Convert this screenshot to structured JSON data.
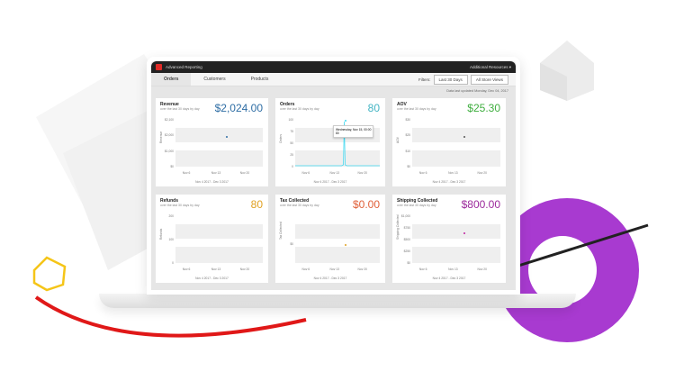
{
  "app": {
    "title": "Advanced Reporting",
    "resources": "Additional Resources ▾"
  },
  "tabs": [
    {
      "label": "Orders",
      "active": true
    },
    {
      "label": "Customers"
    },
    {
      "label": "Products"
    }
  ],
  "filters": {
    "label": "Filters:",
    "range": "Last 30 Days",
    "store": "All Store Views"
  },
  "updated": "Data last updated Monday, Dec 04, 2017",
  "subtitle": "over the last 30 days by day",
  "date_range": "Nov 4 2017 - Dec 3 2017",
  "x_ticks": [
    "Nov 6",
    "Nov 13",
    "Nov 20"
  ],
  "cards": [
    {
      "title": "Revenue",
      "value": "$2,024.00",
      "color": "#2e6da4",
      "ylabel": "Revenue",
      "yticks": [
        "$2,100",
        "$2,000",
        "$1,000",
        "$0"
      ],
      "dot": "#2e6da4"
    },
    {
      "title": "Orders",
      "value": "80",
      "color": "#45b5c4",
      "ylabel": "Orders",
      "yticks": [
        "100",
        "75",
        "50",
        "25",
        "0"
      ],
      "tooltip": [
        "Wednesday, Nov 15, 00:00",
        "80"
      ],
      "dot": "#3fd8f0"
    },
    {
      "title": "AOV",
      "value": "$25.30",
      "color": "#3fae3f",
      "ylabel": "AOV",
      "yticks": [
        "$30",
        "$25",
        "$10",
        "$0"
      ],
      "dot": "#555"
    },
    {
      "title": "Refunds",
      "value": "80",
      "color": "#e0a020",
      "ylabel": "Refunds",
      "yticks": [
        "200",
        "100",
        "0"
      ]
    },
    {
      "title": "Tax Collected",
      "value": "$0.00",
      "color": "#e0603a",
      "ylabel": "Tax Collected",
      "yticks": [
        "$0"
      ],
      "dot": "#e0a020"
    },
    {
      "title": "Shipping Collected",
      "value": "$800.00",
      "color": "#9c2a9c",
      "ylabel": "Shipping Collected",
      "yticks": [
        "$1,000",
        "$750",
        "$500",
        "$250",
        "$0"
      ],
      "dot": "#c020a0"
    }
  ]
}
